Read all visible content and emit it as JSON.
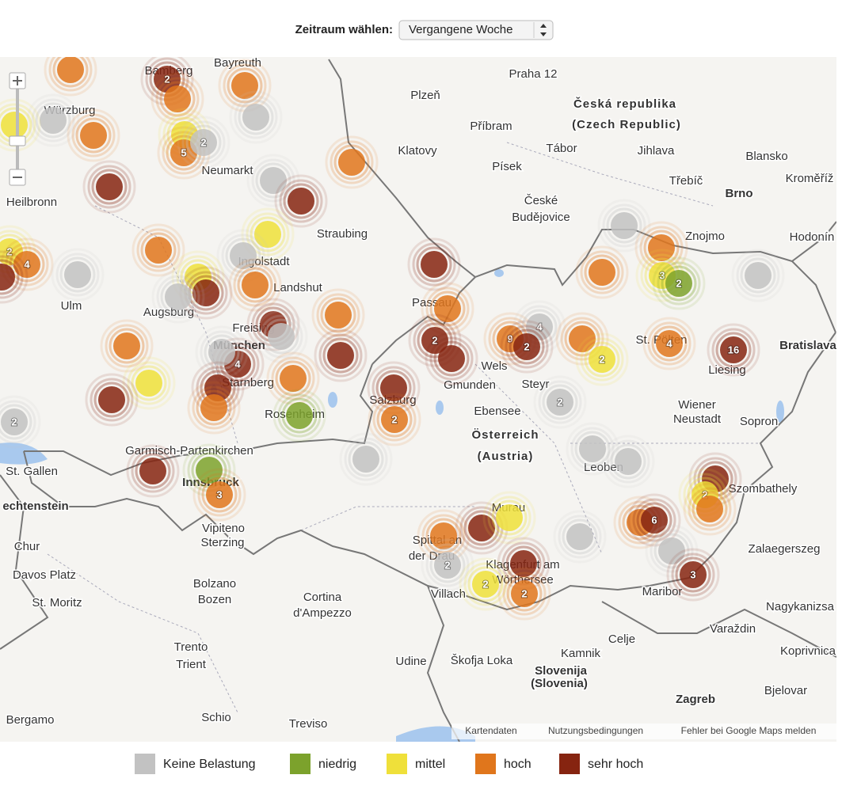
{
  "header": {
    "label": "Zeitraum wählen:",
    "select": "Vergangene Woche"
  },
  "map": {
    "places": [
      {
        "name": "Bayreuth"
      },
      {
        "name": "Bamberg"
      },
      {
        "name": "Würzburg"
      },
      {
        "name": "Praha 12"
      },
      {
        "name": "Plzeň"
      },
      {
        "name": "Česká republika"
      },
      {
        "name": "(Czech Republic)"
      },
      {
        "name": "Příbram"
      },
      {
        "name": "Klatovy"
      },
      {
        "name": "Tábor"
      },
      {
        "name": "Jihlava"
      },
      {
        "name": "Blansko"
      },
      {
        "name": "Písek"
      },
      {
        "name": "Neumarkt"
      },
      {
        "name": "Třebíč"
      },
      {
        "name": "Kroměříž"
      },
      {
        "name": "Brno"
      },
      {
        "name": "Heilbronn"
      },
      {
        "name": "České"
      },
      {
        "name": "Budějovice"
      },
      {
        "name": "Straubing"
      },
      {
        "name": "Znojmo"
      },
      {
        "name": "Hodonín"
      },
      {
        "name": "Ingolstadt"
      },
      {
        "name": "Landshut"
      },
      {
        "name": "Ulm"
      },
      {
        "name": "Augsburg"
      },
      {
        "name": "Passau"
      },
      {
        "name": "Bratislava"
      },
      {
        "name": "St. Pölten"
      },
      {
        "name": "Freising"
      },
      {
        "name": "München"
      },
      {
        "name": "Liesing"
      },
      {
        "name": "Wels"
      },
      {
        "name": "Gmunden"
      },
      {
        "name": "Steyr"
      },
      {
        "name": "Starnberg"
      },
      {
        "name": "Salzburg"
      },
      {
        "name": "Ebensee"
      },
      {
        "name": "Rosenheim"
      },
      {
        "name": "Wiener"
      },
      {
        "name": "Neustadt"
      },
      {
        "name": "Sopron"
      },
      {
        "name": "Österreich"
      },
      {
        "name": "(Austria)"
      },
      {
        "name": "Garmisch-Partenkirchen"
      },
      {
        "name": "St. Gallen"
      },
      {
        "name": "Leoben"
      },
      {
        "name": "Innsbruck"
      },
      {
        "name": "echtenstein"
      },
      {
        "name": "Szombathely"
      },
      {
        "name": "Murau"
      },
      {
        "name": "Vipiteno"
      },
      {
        "name": "Sterzing"
      },
      {
        "name": "Spittal an"
      },
      {
        "name": "der Drau"
      },
      {
        "name": "Chur"
      },
      {
        "name": "Zalaegerszeg"
      },
      {
        "name": "Klagenfurt am"
      },
      {
        "name": "Wörthersee"
      },
      {
        "name": "Davos Platz"
      },
      {
        "name": "Bolzano"
      },
      {
        "name": "Bozen"
      },
      {
        "name": "Villach"
      },
      {
        "name": "Maribor"
      },
      {
        "name": "Cortina"
      },
      {
        "name": "d'Ampezzo"
      },
      {
        "name": "St. Moritz"
      },
      {
        "name": "Nagykanizsa"
      },
      {
        "name": "Varaždin"
      },
      {
        "name": "Celje"
      },
      {
        "name": "Trento"
      },
      {
        "name": "Trient"
      },
      {
        "name": "Kamnik"
      },
      {
        "name": "Koprivnica"
      },
      {
        "name": "Škofja Loka"
      },
      {
        "name": "Udine"
      },
      {
        "name": "Slovenija"
      },
      {
        "name": "(Slovenia)"
      },
      {
        "name": "Bjelovar"
      },
      {
        "name": "Zagreb"
      },
      {
        "name": "Bergamo"
      },
      {
        "name": "Schio"
      },
      {
        "name": "Treviso"
      }
    ],
    "markers": [
      {
        "level": "hoch"
      },
      {
        "level": "sehr hoch",
        "count": 2
      },
      {
        "level": "hoch"
      },
      {
        "level": "hoch"
      },
      {
        "level": "Keine Belastung"
      },
      {
        "level": "mittel"
      },
      {
        "level": "Keine Belastung"
      },
      {
        "level": "hoch"
      },
      {
        "level": "mittel"
      },
      {
        "level": "hoch",
        "count": 5
      },
      {
        "level": "Keine Belastung",
        "count": 2
      },
      {
        "level": "hoch"
      },
      {
        "level": "Keine Belastung"
      },
      {
        "level": "sehr hoch"
      },
      {
        "level": "sehr hoch"
      },
      {
        "level": "mittel"
      },
      {
        "level": "hoch"
      },
      {
        "level": "Keine Belastung"
      },
      {
        "level": "mittel",
        "count": 2
      },
      {
        "level": "hoch",
        "count": 4
      },
      {
        "level": "sehr hoch"
      },
      {
        "level": "Keine Belastung"
      },
      {
        "level": "sehr hoch"
      },
      {
        "level": "mittel"
      },
      {
        "level": "sehr hoch"
      },
      {
        "level": "hoch"
      },
      {
        "level": "Keine Belastung"
      },
      {
        "level": "hoch"
      },
      {
        "level": "hoch"
      },
      {
        "level": "sehr hoch"
      },
      {
        "level": "hoch"
      },
      {
        "level": "Keine Belastung"
      },
      {
        "level": "sehr hoch"
      },
      {
        "level": "sehr hoch",
        "count": 4
      },
      {
        "level": "Keine Belastung"
      },
      {
        "level": "mittel"
      },
      {
        "level": "sehr hoch"
      },
      {
        "level": "sehr hoch"
      },
      {
        "level": "hoch"
      },
      {
        "level": "hoch"
      },
      {
        "level": "sehr hoch",
        "count": 2
      },
      {
        "level": "sehr hoch"
      },
      {
        "level": "hoch",
        "count": 9
      },
      {
        "level": "Keine Belastung",
        "count": 4
      },
      {
        "level": "sehr hoch",
        "count": 2
      },
      {
        "level": "hoch"
      },
      {
        "level": "mittel",
        "count": 2
      },
      {
        "level": "Keine Belastung"
      },
      {
        "level": "hoch"
      },
      {
        "level": "hoch"
      },
      {
        "level": "mittel",
        "count": 3
      },
      {
        "level": "niedrig",
        "count": 2
      },
      {
        "level": "Keine Belastung"
      },
      {
        "level": "hoch",
        "count": 4
      },
      {
        "level": "sehr hoch",
        "count": 16
      },
      {
        "level": "Keine Belastung",
        "count": 2
      },
      {
        "level": "sehr hoch"
      },
      {
        "level": "hoch",
        "count": 2
      },
      {
        "level": "niedrig"
      },
      {
        "level": "Keine Belastung",
        "count": 2
      },
      {
        "level": "Keine Belastung"
      },
      {
        "level": "Keine Belastung"
      },
      {
        "level": "Keine Belastung"
      },
      {
        "level": "sehr hoch"
      },
      {
        "level": "niedrig"
      },
      {
        "level": "hoch",
        "count": 3
      },
      {
        "level": "sehr hoch"
      },
      {
        "level": "mittel",
        "count": 2
      },
      {
        "level": "hoch"
      },
      {
        "level": "sehr hoch"
      },
      {
        "level": "hoch"
      },
      {
        "level": "mittel"
      },
      {
        "level": "Keine Belastung"
      },
      {
        "level": "hoch"
      },
      {
        "level": "sehr hoch",
        "count": 6
      },
      {
        "level": "Keine Belastung"
      },
      {
        "level": "Keine Belastung",
        "count": 2
      },
      {
        "level": "mittel",
        "count": 2
      },
      {
        "level": "sehr hoch"
      },
      {
        "level": "hoch",
        "count": 2
      },
      {
        "level": "sehr hoch",
        "count": 3
      }
    ],
    "attribution": [
      "Kartendaten",
      "Nutzungsbedingungen",
      "Fehler bei Google Maps melden"
    ]
  },
  "legend": [
    {
      "label": "Keine Belastung",
      "color": "#c2c2c2"
    },
    {
      "label": "niedrig",
      "color": "#7ca22c"
    },
    {
      "label": "mittel",
      "color": "#efe03a"
    },
    {
      "label": "hoch",
      "color": "#e0761c"
    },
    {
      "label": "sehr hoch",
      "color": "#862410"
    }
  ]
}
